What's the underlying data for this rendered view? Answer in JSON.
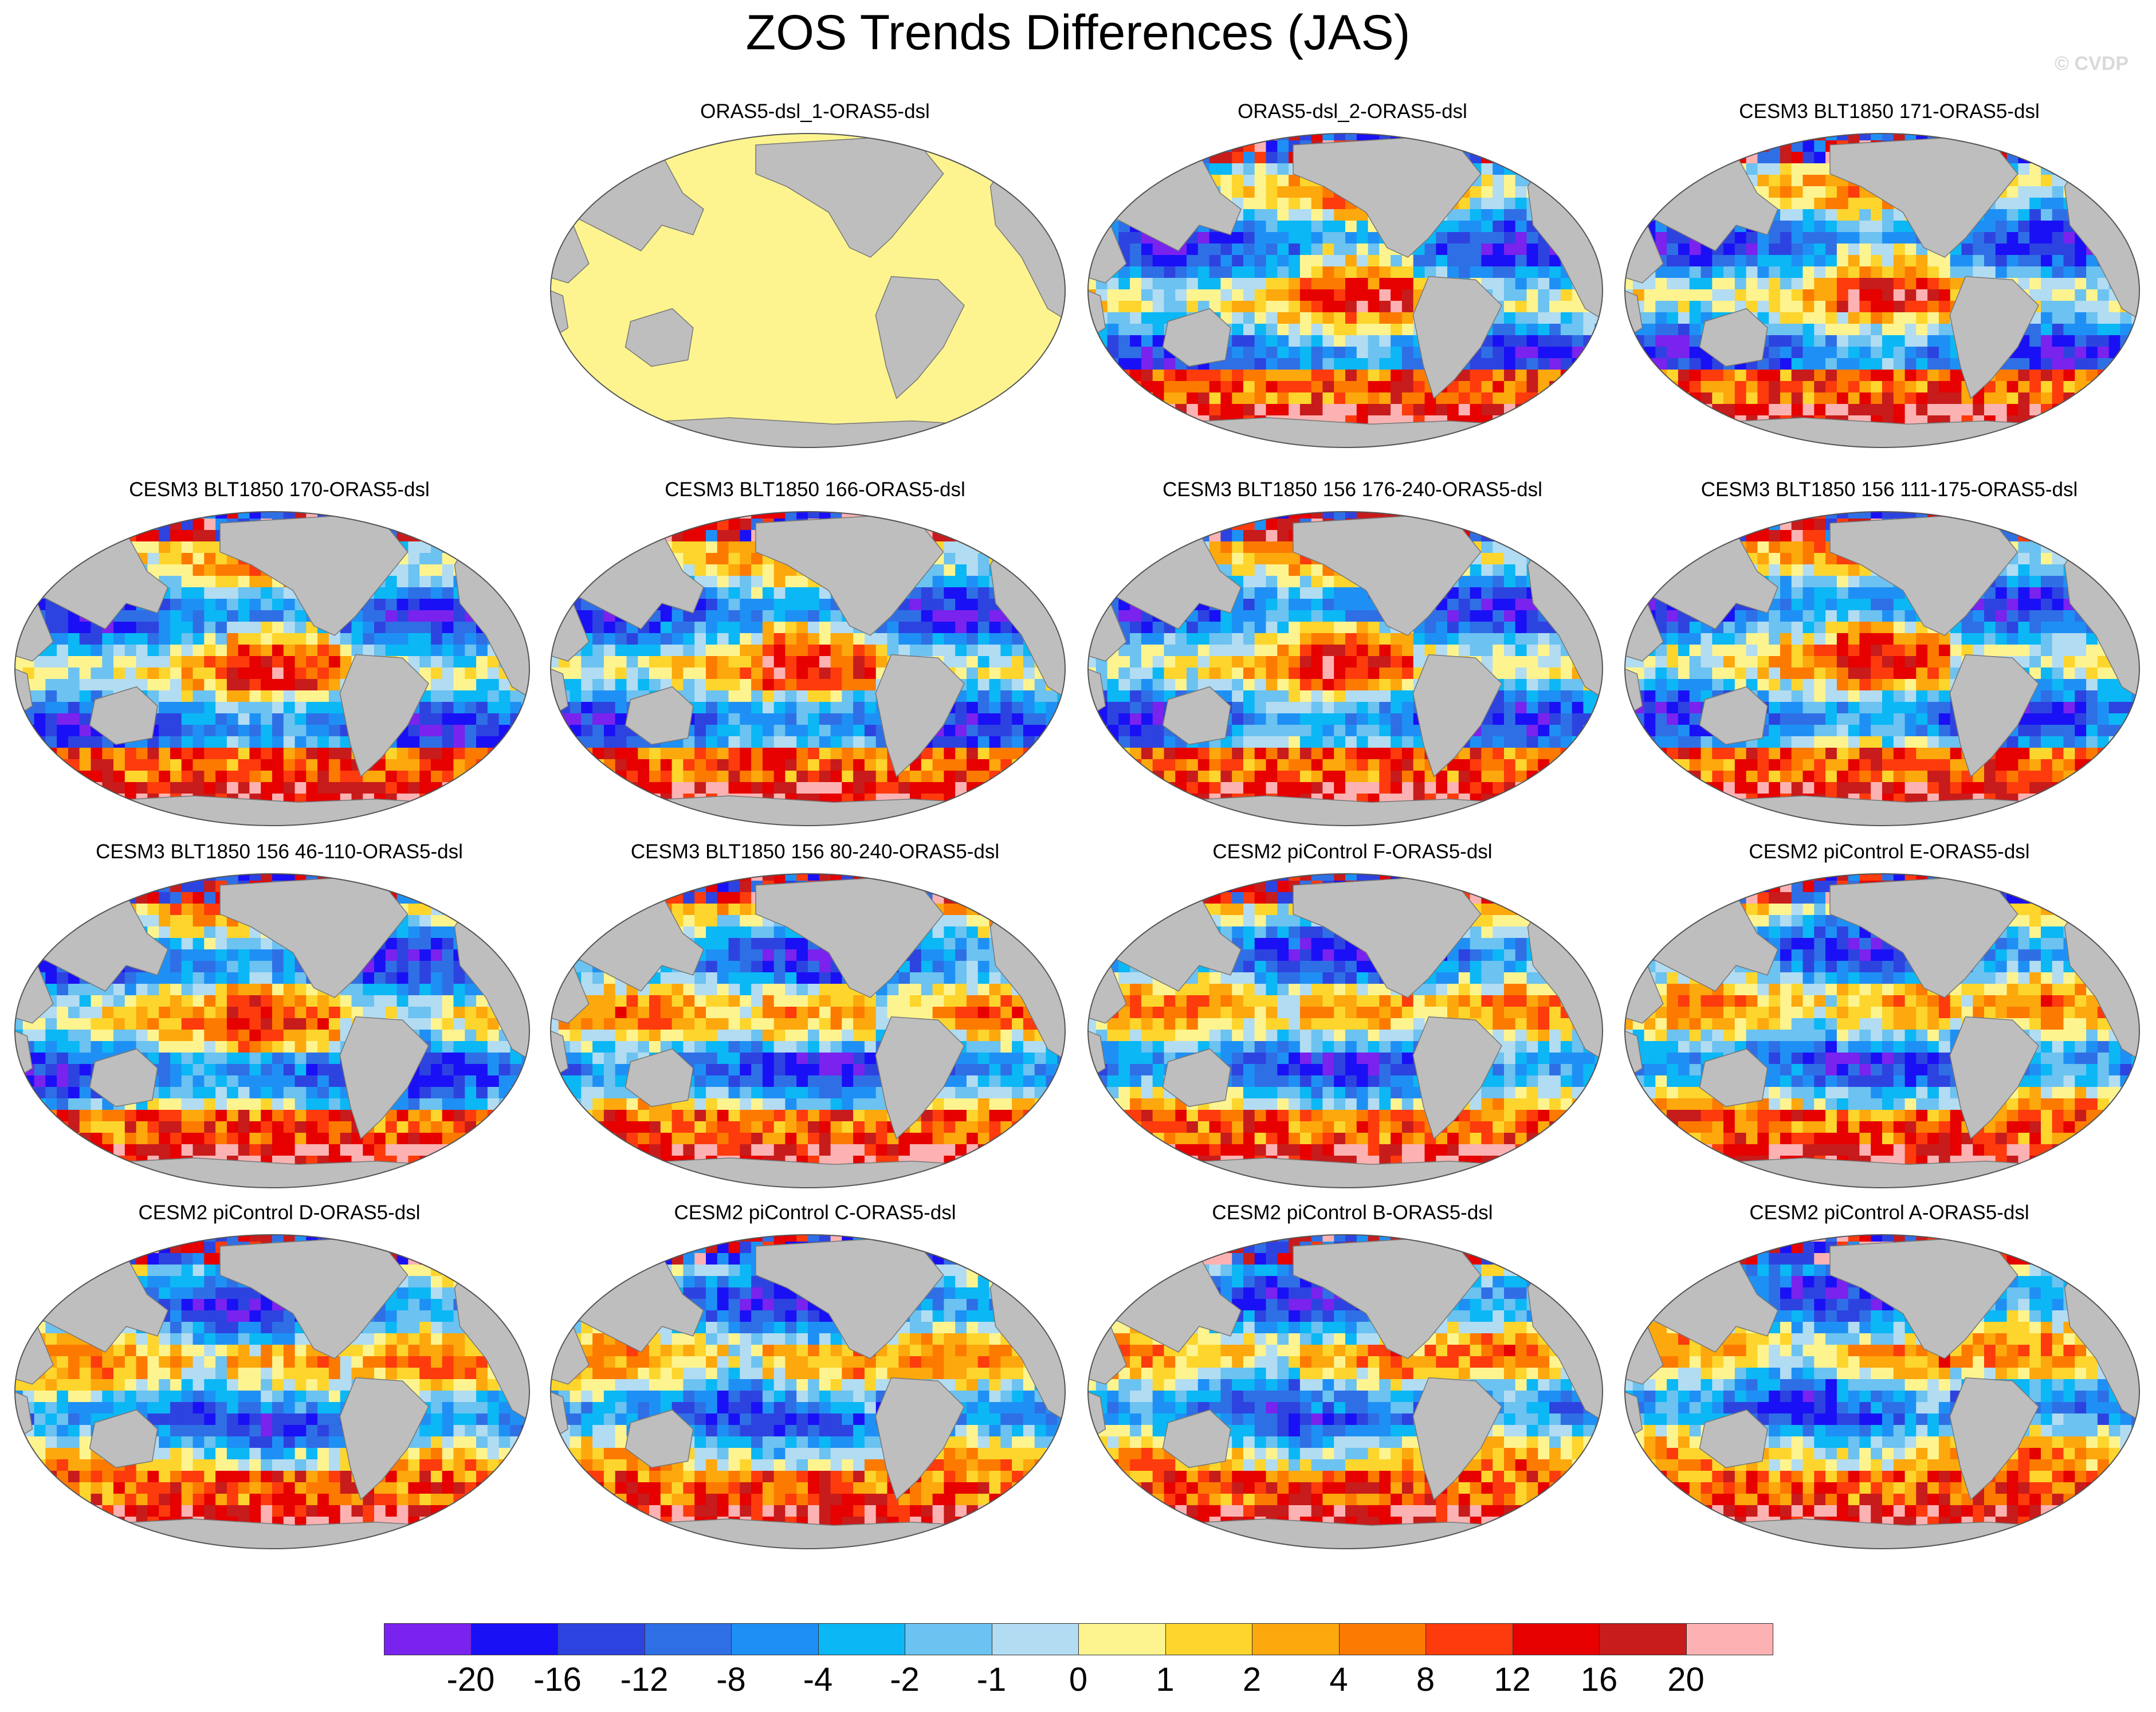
{
  "title": "ZOS Trends Differences (JAS)",
  "watermark": "© CVDP",
  "colors": {
    "land": "#bebebe",
    "outline": "#555555"
  },
  "panels": [
    {
      "title": "ORAS5-dsl_1-ORAS5-dsl",
      "uniform": "#fdf48f"
    },
    {
      "title": "ORAS5-dsl_2-ORAS5-dsl"
    },
    {
      "title": "CESM3 BLT1850 171-ORAS5-dsl"
    },
    {
      "title": "CESM3 BLT1850 170-ORAS5-dsl"
    },
    {
      "title": "CESM3 BLT1850 166-ORAS5-dsl"
    },
    {
      "title": "CESM3 BLT1850 156 176-240-ORAS5-dsl"
    },
    {
      "title": "CESM3 BLT1850 156 111-175-ORAS5-dsl"
    },
    {
      "title": "CESM3 BLT1850 156 46-110-ORAS5-dsl"
    },
    {
      "title": "CESM3 BLT1850 156 80-240-ORAS5-dsl"
    },
    {
      "title": "CESM2 piControl F-ORAS5-dsl"
    },
    {
      "title": "CESM2 piControl E-ORAS5-dsl"
    },
    {
      "title": "CESM2 piControl D-ORAS5-dsl"
    },
    {
      "title": "CESM2 piControl C-ORAS5-dsl"
    },
    {
      "title": "CESM2 piControl B-ORAS5-dsl"
    },
    {
      "title": "CESM2 piControl A-ORAS5-dsl"
    }
  ],
  "colorbar": {
    "colors": [
      "#7a22ee",
      "#1a10f5",
      "#2d43e0",
      "#2f6fe6",
      "#1e90f5",
      "#0bb7f5",
      "#6cc2f0",
      "#b2dcf2",
      "#fdf48f",
      "#fdd52c",
      "#fda80c",
      "#fd7a00",
      "#fd3b0c",
      "#e60000",
      "#c81b1b",
      "#fcb2b2"
    ],
    "labels": [
      "-20",
      "-16",
      "-12",
      "-8",
      "-4",
      "-2",
      "-1",
      "0",
      "1",
      "2",
      "4",
      "8",
      "12",
      "16",
      "20"
    ]
  }
}
